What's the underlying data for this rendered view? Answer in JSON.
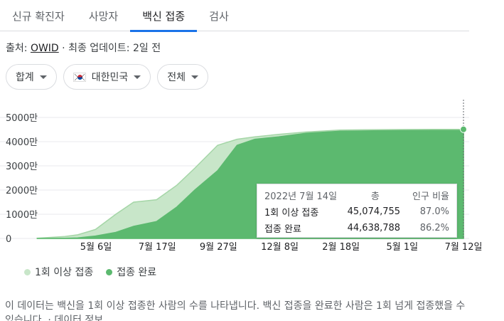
{
  "tabs": [
    "신규 확진자",
    "사망자",
    "백신 접종",
    "검사"
  ],
  "active_tab_index": 2,
  "source": {
    "prefix": "출처:",
    "link": "OWID",
    "suffix": "· 최종 업데이트: 2일 전"
  },
  "filters": [
    {
      "label": "합계"
    },
    {
      "label": "대한민국",
      "icon": "kr-flag-icon"
    },
    {
      "label": "전체"
    }
  ],
  "colors": {
    "accent": "#1a73e8",
    "one_dose": "#c8e6c9",
    "fully": "#5cb96f"
  },
  "chart_data": {
    "type": "area",
    "yticks": [
      "5000만",
      "4000만",
      "3000만",
      "2000만",
      "1000만",
      "0"
    ],
    "ylim": [
      0,
      50000000
    ],
    "xticks": [
      "5월 6일",
      "7월 17일",
      "9월 27일",
      "12월 8일",
      "2월 18일",
      "5월 1일",
      "7월 12일"
    ],
    "x": [
      "2021-02-26",
      "2021-03-31",
      "2021-04-15",
      "2021-05-06",
      "2021-05-30",
      "2021-06-20",
      "2021-07-17",
      "2021-08-10",
      "2021-08-31",
      "2021-09-27",
      "2021-10-20",
      "2021-11-10",
      "2021-12-08",
      "2022-01-10",
      "2022-02-18",
      "2022-03-30",
      "2022-05-01",
      "2022-06-10",
      "2022-07-14"
    ],
    "series": [
      {
        "name": "1회 이상 접종",
        "values": [
          100000,
          800000,
          1500000,
          3700000,
          10000000,
          15000000,
          16000000,
          22000000,
          29000000,
          38500000,
          41000000,
          42000000,
          43000000,
          44000000,
          44800000,
          44950000,
          45000000,
          45050000,
          45074755
        ]
      },
      {
        "name": "접종 완료",
        "values": [
          0,
          100000,
          200000,
          1000000,
          2500000,
          5000000,
          7000000,
          13000000,
          20000000,
          28000000,
          38500000,
          41000000,
          42000000,
          43500000,
          44300000,
          44500000,
          44580000,
          44620000,
          44638788
        ]
      }
    ],
    "tooltip": {
      "date": "2022년 7월 14일",
      "col_total": "총",
      "col_ratio": "인구 비율",
      "rows": [
        {
          "label": "1회 이상 접종",
          "value": "45,074,755",
          "ratio": "87.0%"
        },
        {
          "label": "접종 완료",
          "value": "44,638,788",
          "ratio": "86.2%"
        }
      ]
    }
  },
  "legend": [
    "1회 이상 접종",
    "접종 완료"
  ],
  "description": "이 데이터는 백신을 1회 이상 접종한 사람의 수를 나타냅니다. 백신 접종을 완료한 사람은 1회 넘게 접종했을 수 있습니다. · 데이터 정보"
}
